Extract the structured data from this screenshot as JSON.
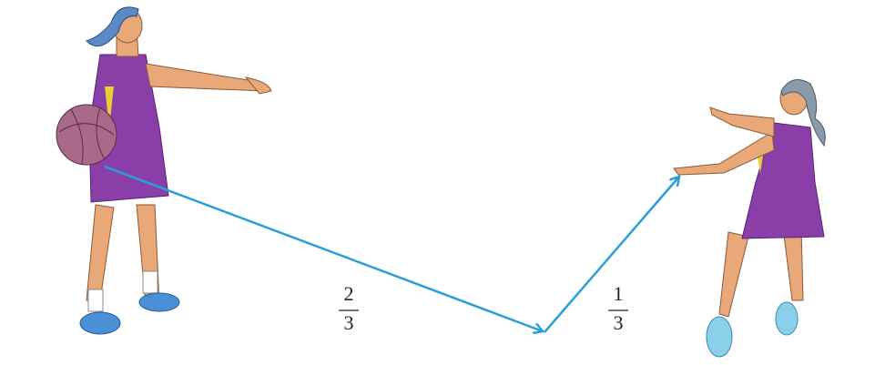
{
  "labels": [
    {
      "numerator": "2",
      "denominator": "3"
    },
    {
      "numerator": "1",
      "denominator": "3"
    }
  ]
}
